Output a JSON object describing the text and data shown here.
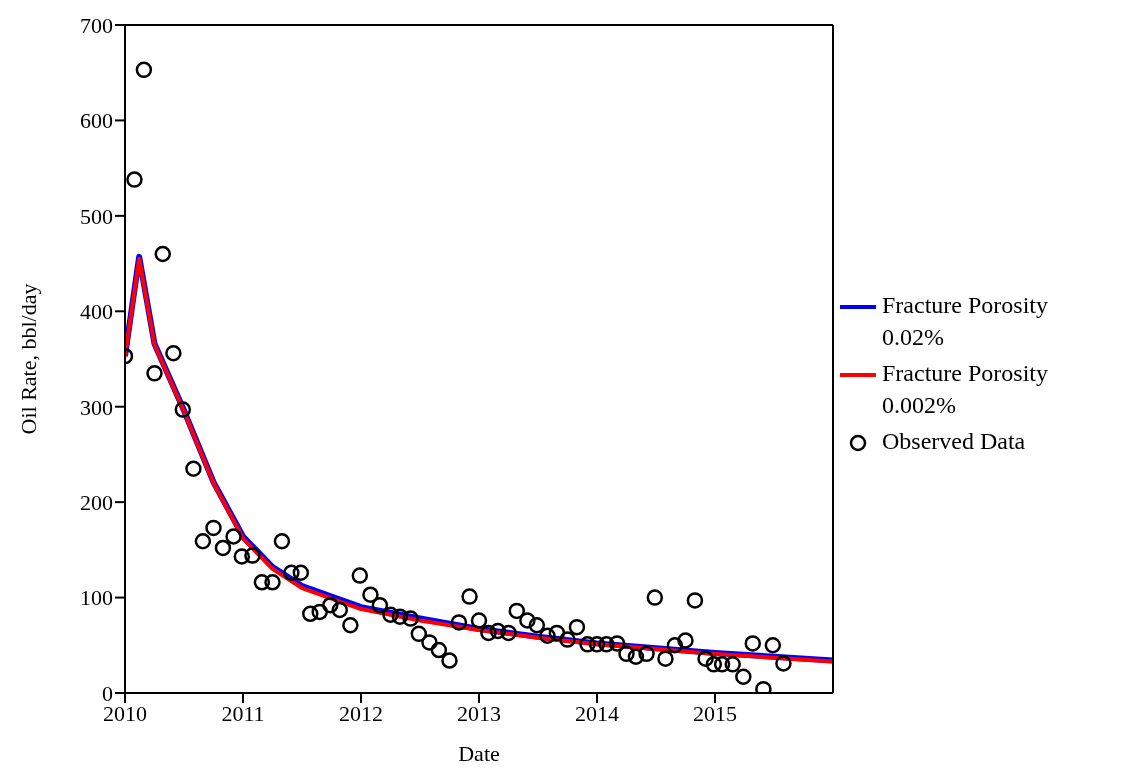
{
  "chart_data": {
    "type": "line",
    "xlabel": "Date",
    "ylabel": "Oil Rate, bbl/day",
    "xlim": [
      2010,
      2016
    ],
    "xticks": [
      2010,
      2011,
      2012,
      2013,
      2014,
      2015
    ],
    "ylim": [
      0,
      700
    ],
    "yticks": [
      0,
      100,
      200,
      300,
      400,
      500,
      600,
      700
    ],
    "legend": "right",
    "series": [
      {
        "name": "Fracture Porosity 0.02%",
        "color": "#0000ff",
        "marker": "none",
        "x": [
          2010,
          2010.12,
          2010.25,
          2010.5,
          2010.75,
          2011,
          2011.25,
          2011.5,
          2012,
          2012.5,
          2013,
          2013.5,
          2014,
          2014.5,
          2015,
          2015.5,
          2016
        ],
        "values": [
          353,
          457,
          366,
          296,
          221,
          164,
          132,
          112,
          90,
          78,
          67,
          59,
          52,
          47,
          42,
          38,
          34
        ]
      },
      {
        "name": "Fracture Porosity 0.002%",
        "color": "#ff0000",
        "marker": "none",
        "x": [
          2010,
          2010.12,
          2010.25,
          2010.5,
          2010.75,
          2011,
          2011.25,
          2011.5,
          2012,
          2012.5,
          2013,
          2013.5,
          2014,
          2014.5,
          2015,
          2015.5,
          2016
        ],
        "values": [
          353,
          455,
          365,
          295,
          220,
          162,
          130,
          110,
          88,
          76,
          66,
          58,
          51,
          46,
          41,
          37,
          33
        ]
      },
      {
        "name": "Observed Data",
        "type": "scatter",
        "color": "#000000",
        "marker": "circle",
        "x": [
          2010.0,
          2010.08,
          2010.16,
          2010.25,
          2010.32,
          2010.41,
          2010.49,
          2010.58,
          2010.66,
          2010.75,
          2010.83,
          2010.92,
          2010.99,
          2011.08,
          2011.16,
          2011.25,
          2011.33,
          2011.41,
          2011.49,
          2011.57,
          2011.65,
          2011.74,
          2011.82,
          2011.91,
          2011.99,
          2012.08,
          2012.16,
          2012.25,
          2012.33,
          2012.42,
          2012.49,
          2012.58,
          2012.66,
          2012.75,
          2012.83,
          2012.92,
          2013.0,
          2013.08,
          2013.16,
          2013.25,
          2013.32,
          2013.41,
          2013.49,
          2013.58,
          2013.66,
          2013.75,
          2013.83,
          2013.92,
          2014.0,
          2014.08,
          2014.17,
          2014.25,
          2014.33,
          2014.42,
          2014.49,
          2014.58,
          2014.66,
          2014.75,
          2014.83,
          2014.92,
          2014.99,
          2015.06,
          2015.15,
          2015.24,
          2015.32,
          2015.41,
          2015.49,
          2015.58
        ],
        "values": [
          353,
          538,
          653,
          335,
          460,
          356,
          297,
          235,
          159,
          173,
          152,
          164,
          143,
          144,
          116,
          116,
          159,
          126,
          126,
          83,
          85,
          92,
          87,
          71,
          123,
          103,
          92,
          82,
          80,
          78,
          62,
          53,
          45,
          34,
          74,
          101,
          76,
          63,
          65,
          63,
          86,
          76,
          71,
          60,
          63,
          56,
          69,
          51,
          51,
          51,
          52,
          41,
          38,
          41,
          100,
          36,
          50,
          55,
          97,
          36,
          30,
          30,
          30,
          17,
          52,
          4,
          50,
          31
        ]
      }
    ]
  }
}
